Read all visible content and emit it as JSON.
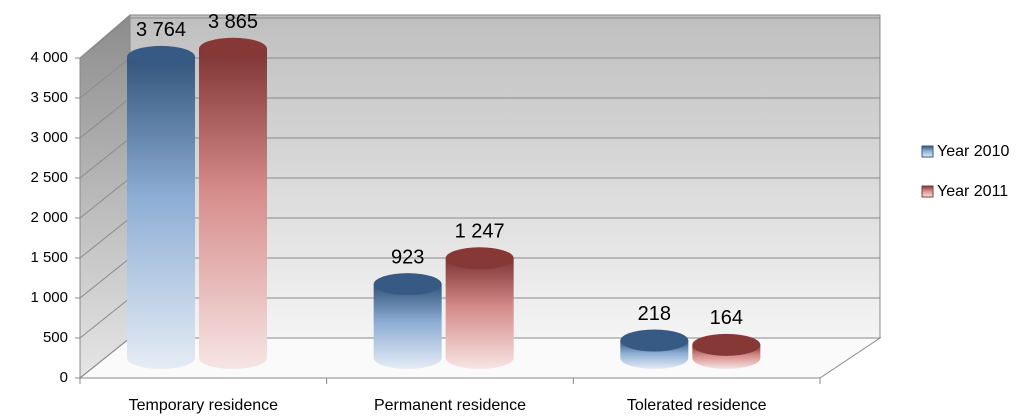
{
  "chart_data": {
    "type": "bar3d",
    "categories": [
      "Temporary residence",
      "Permanent residence",
      "Tolerated residence"
    ],
    "series": [
      {
        "name": "Year 2010",
        "color": "#4f81bd",
        "values": [
          3764,
          923,
          218
        ],
        "value_labels": [
          "3 764",
          "923",
          "218"
        ]
      },
      {
        "name": "Year 2011",
        "color": "#c0504d",
        "values": [
          3865,
          1247,
          164
        ],
        "value_labels": [
          "3 865",
          "1 247",
          "164"
        ]
      }
    ],
    "ylim": [
      0,
      4000
    ],
    "yticks": [
      0,
      500,
      {
        "value": 1000,
        "label": "1 000"
      },
      {
        "value": 1500,
        "label": "1 500"
      },
      {
        "value": 2000,
        "label": "2 000"
      },
      {
        "value": 2500,
        "label": "2 500"
      },
      {
        "value": 3000,
        "label": "3 000"
      },
      {
        "value": 3500,
        "label": "3 500"
      },
      {
        "value": 4000,
        "label": "4 000"
      }
    ],
    "grid": true,
    "legend": "right"
  }
}
